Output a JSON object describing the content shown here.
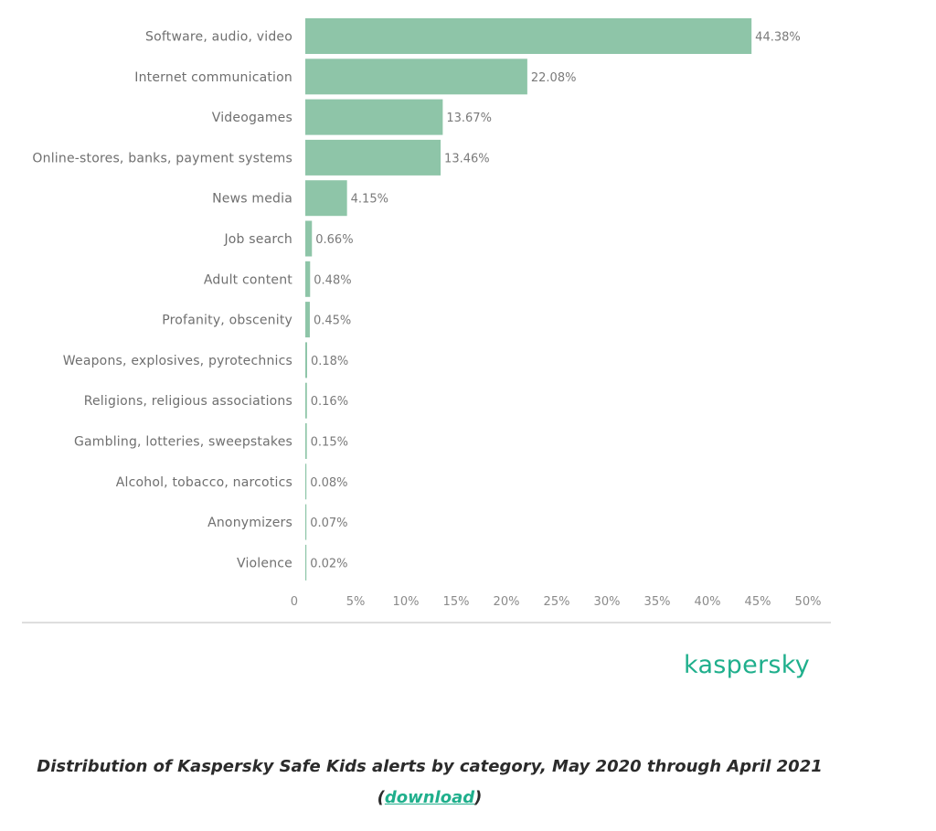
{
  "chart_data": {
    "type": "bar",
    "orientation": "horizontal",
    "categories": [
      "Software, audio, video",
      "Internet communication",
      "Videogames",
      "Online-stores, banks, payment systems",
      "News media",
      "Job search",
      "Adult content",
      "Profanity, obscenity",
      "Weapons, explosives, pyrotechnics",
      "Religions, religious associations",
      "Gambling, lotteries, sweepstakes",
      "Alcohol, tobacco, narcotics",
      "Anonymizers",
      "Violence"
    ],
    "values": [
      44.38,
      22.08,
      13.67,
      13.46,
      4.15,
      0.66,
      0.48,
      0.45,
      0.18,
      0.16,
      0.15,
      0.08,
      0.07,
      0.02
    ],
    "value_labels": [
      "44.38%",
      "22.08%",
      "13.67%",
      "13.46%",
      "4.15%",
      "0.66%",
      "0.48%",
      "0.45%",
      "0.18%",
      "0.16%",
      "0.15%",
      "0.08%",
      "0.07%",
      "0.02%"
    ],
    "xlim": [
      0,
      50
    ],
    "x_ticks": [
      "0",
      "5%",
      "10%",
      "15%",
      "20%",
      "25%",
      "30%",
      "35%",
      "40%",
      "45%",
      "50%"
    ],
    "grid": false,
    "bar_color": "#8ec5a8",
    "title": "",
    "xlabel": "",
    "ylabel": ""
  },
  "brand": {
    "logo_text": "kaspersky",
    "color": "#1faf8c"
  },
  "caption": {
    "text": "Distribution of Kaspersky Safe Kids alerts by category, May 2020 through April 2021",
    "open_paren": "(",
    "link_label": "download",
    "close_paren": ")"
  }
}
